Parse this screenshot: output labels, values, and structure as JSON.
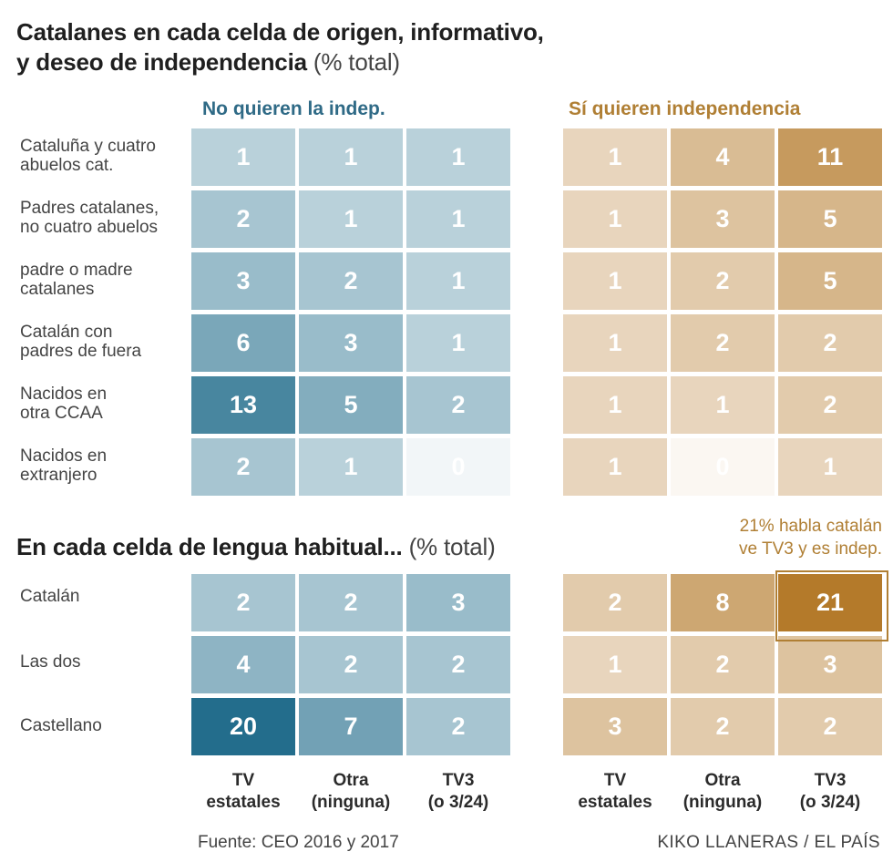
{
  "chart_data": [
    {
      "type": "heatmap",
      "title": "Catalanes en cada celda de origen, informativo, y deseo de independencia",
      "title_line1": "Catalanes en cada celda de origen, informativo,",
      "title_line2": "y deseo de independencia",
      "unit": "(% total)",
      "groups": [
        "No quieren la indep.",
        "Sí quieren independencia"
      ],
      "columns": [
        "TV\nestatales",
        "Otra\n(ninguna)",
        "TV3\n(o 3/24)"
      ],
      "rows": [
        "Cataluña y cuatro\nabuelos cat.",
        "Padres catalanes,\nno cuatro abuelos",
        "padre o madre\ncatalanes",
        "Catalán con\npadres de fuera",
        "Nacidos en\notra CCAA",
        "Nacidos en\nextranjero"
      ],
      "values_no": [
        [
          1,
          1,
          1
        ],
        [
          2,
          1,
          1
        ],
        [
          3,
          2,
          1
        ],
        [
          6,
          3,
          1
        ],
        [
          13,
          5,
          2
        ],
        [
          2,
          1,
          0
        ]
      ],
      "values_si": [
        [
          1,
          4,
          11
        ],
        [
          1,
          3,
          5
        ],
        [
          1,
          2,
          5
        ],
        [
          1,
          2,
          2
        ],
        [
          1,
          1,
          2
        ],
        [
          1,
          0,
          1
        ]
      ]
    },
    {
      "type": "heatmap",
      "title": "En cada celda de lengua habitual...",
      "unit": "(% total)",
      "columns": [
        "TV\nestatales",
        "Otra\n(ninguna)",
        "TV3\n(o 3/24)"
      ],
      "rows": [
        "Catalán",
        "Las dos",
        "Castellano"
      ],
      "values_no": [
        [
          2,
          2,
          3
        ],
        [
          4,
          2,
          2
        ],
        [
          20,
          7,
          2
        ]
      ],
      "values_si": [
        [
          2,
          8,
          21
        ],
        [
          1,
          2,
          3
        ],
        [
          3,
          2,
          2
        ]
      ],
      "annotation": "21% habla catalán\nve TV3 y es indep."
    }
  ],
  "colors": {
    "no_base": "#1e6a89",
    "si_base": "#b47a2a",
    "no_label": "#2f6a86",
    "si_label": "#b07f34"
  },
  "source": "Fuente: CEO 2016 y 2017",
  "credit": "KIKO LLANERAS / EL PAÍS"
}
